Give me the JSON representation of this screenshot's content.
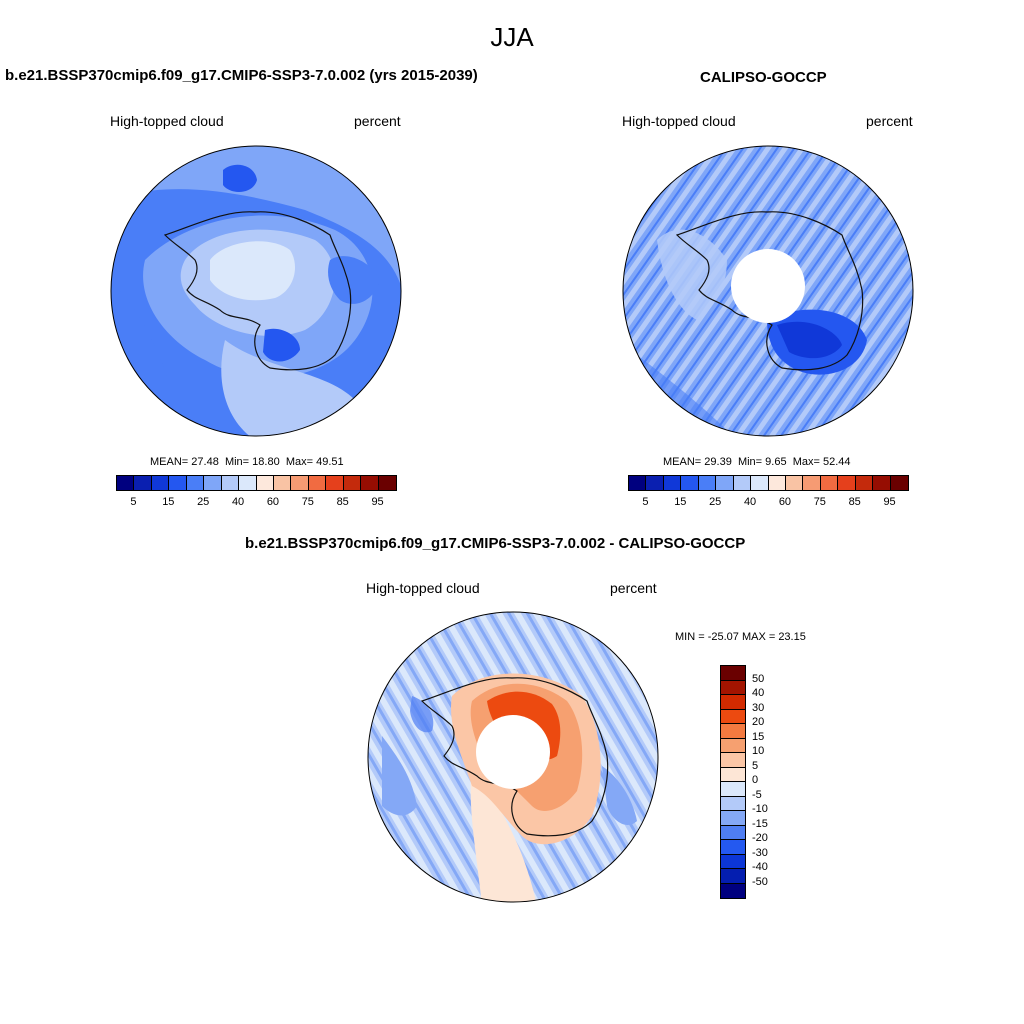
{
  "page": {
    "title": "JJA"
  },
  "panels": [
    {
      "title": "b.e21.BSSP370cmip6.f09_g17.CMIP6-SSP3-7.0.002 (yrs 2015-2039)",
      "variable": "High-topped cloud",
      "units": "percent",
      "stats": {
        "mean_label": "MEAN=",
        "mean": "27.48",
        "min_label": "Min=",
        "min": "18.80",
        "max_label": "Max=",
        "max": "49.51"
      }
    },
    {
      "title": "CALIPSO-GOCCP",
      "variable": "High-topped cloud",
      "units": "percent",
      "stats": {
        "mean_label": "MEAN=",
        "mean": "29.39",
        "min_label": "Min=",
        "min": "9.65",
        "max_label": "Max=",
        "max": "52.44"
      }
    },
    {
      "title": "b.e21.BSSP370cmip6.f09_g17.CMIP6-SSP3-7.0.002 - CALIPSO-GOCCP",
      "variable": "High-topped cloud",
      "units": "percent",
      "stats_text": "MIN = -25.07 MAX =  23.15"
    }
  ],
  "colorbar_abs": {
    "colors": [
      "#00007f",
      "#0a1fb0",
      "#1038d8",
      "#2457f0",
      "#4a7ef7",
      "#7fa6f8",
      "#b3caf9",
      "#dbe8fb",
      "#fde8dc",
      "#f9c3a4",
      "#f69b73",
      "#f16b41",
      "#e5401c",
      "#c42a0c",
      "#960d02",
      "#6a0000"
    ],
    "labels": [
      "5",
      "15",
      "25",
      "40",
      "60",
      "75",
      "85",
      "95"
    ]
  },
  "colorbar_diff": {
    "colors": [
      "#6a0000",
      "#a31400",
      "#d22a00",
      "#ec4a10",
      "#f47a40",
      "#f6a070",
      "#fbc6a6",
      "#fde6d6",
      "#dbe8fb",
      "#b3caf9",
      "#84a8f6",
      "#4f7ef3",
      "#2459f0",
      "#0c36d6",
      "#041eb0",
      "#00007f"
    ],
    "labels": [
      "50",
      "40",
      "30",
      "20",
      "15",
      "10",
      "5",
      "0",
      "-5",
      "-10",
      "-15",
      "-20",
      "-30",
      "-40",
      "-50"
    ]
  }
}
